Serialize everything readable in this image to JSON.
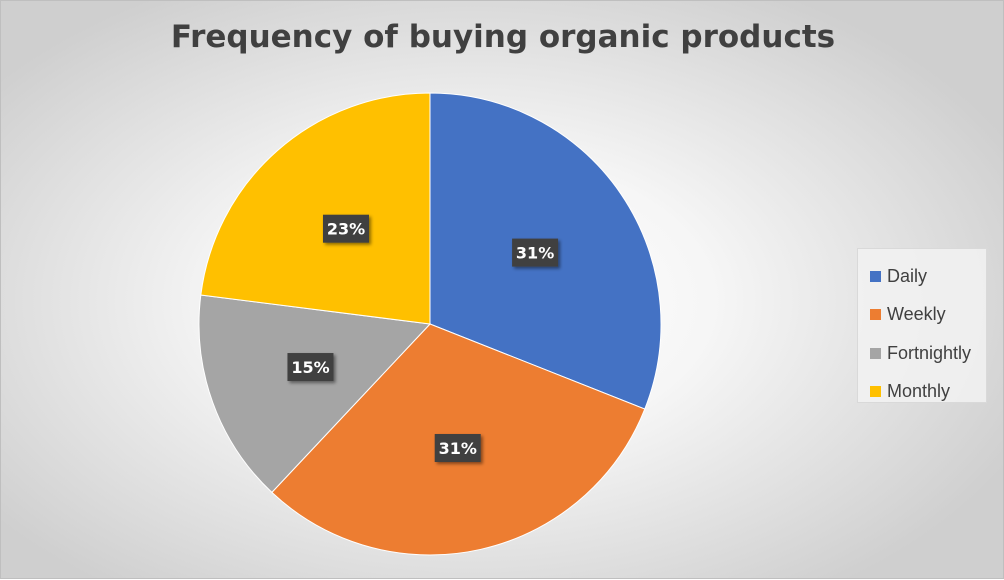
{
  "chart_data": {
    "type": "pie",
    "title": "Frequency of buying organic products",
    "categories": [
      "Daily",
      "Weekly",
      "Fortnightly",
      "Monthly"
    ],
    "values": [
      31,
      31,
      15,
      23
    ],
    "data_labels": [
      "31%",
      "31%",
      "15%",
      "23%"
    ],
    "colors": [
      "#4472C4",
      "#ED7D31",
      "#A5A5A5",
      "#FFC000"
    ],
    "start_angle": "12 o'clock, clockwise",
    "legend_position": "right"
  }
}
